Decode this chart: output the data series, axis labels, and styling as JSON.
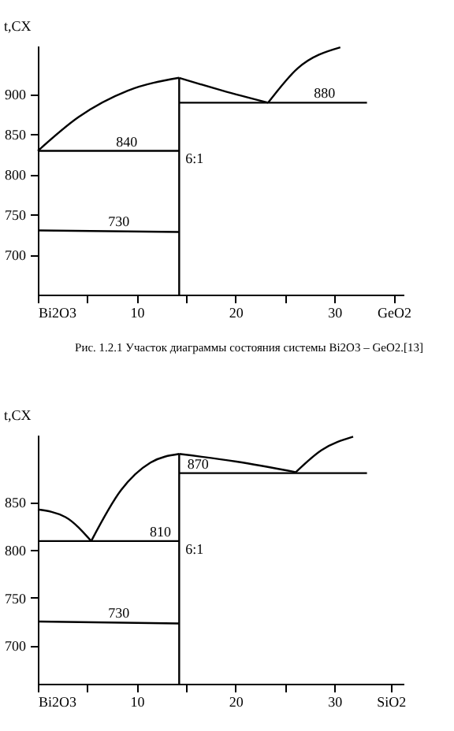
{
  "chart_data": [
    {
      "type": "line",
      "ylabel": "t,CX",
      "xlim": [
        0,
        37
      ],
      "ylim": [
        650,
        960
      ],
      "xticks": [
        {
          "value": 0,
          "label": "Bi2O3"
        },
        {
          "value": 5,
          "label": null
        },
        10,
        {
          "value": 15,
          "label": null
        },
        20,
        {
          "value": 25,
          "label": null
        },
        30,
        {
          "value": 36,
          "label": "GeO2"
        }
      ],
      "yticks": [
        700,
        750,
        800,
        850,
        900
      ],
      "grid": false,
      "series": [
        {
          "color": "#000000",
          "x": [
            0,
            4.1,
            9.1,
            14.3
          ],
          "values": [
            829,
            871,
            904,
            920
          ]
        },
        {
          "color": "#000000",
          "x": [
            14.3,
            18.7,
            23.3
          ],
          "values": [
            920,
            904,
            889
          ]
        },
        {
          "color": "#000000",
          "x": [
            23.3,
            26.3,
            30.6
          ],
          "values": [
            889,
            932,
            958
          ]
        },
        {
          "color": "#000000",
          "x": [
            14.3,
            14.3
          ],
          "values": [
            650,
            920
          ]
        },
        {
          "color": "#000000",
          "x": [
            14.3,
            33.3
          ],
          "values": [
            889,
            889
          ]
        },
        {
          "color": "#000000",
          "x": [
            0,
            14.3
          ],
          "values": [
            829,
            829
          ]
        },
        {
          "color": "#000000",
          "x": [
            0,
            14.3
          ],
          "values": [
            730,
            728
          ]
        }
      ],
      "annotations": [
        {
          "text": "840",
          "x": 9,
          "y": 829
        },
        {
          "text": "730",
          "x": 8.2,
          "y": 729
        },
        {
          "text": "880",
          "x": 29,
          "y": 889
        },
        {
          "text": "6:1",
          "x": 14.3,
          "y": 820
        },
        "Рис. 1.2.1  Участок диаграммы состояния системы Bi2O3 – GeO2.[13]"
      ]
    },
    {
      "type": "line",
      "ylabel": "t,CX",
      "xlim": [
        0,
        37
      ],
      "ylim": [
        660,
        920
      ],
      "xticks": [
        {
          "value": 0,
          "label": "Bi2O3"
        },
        {
          "value": 5,
          "label": null
        },
        10,
        {
          "value": 15,
          "label": null
        },
        20,
        {
          "value": 25,
          "label": null
        },
        30,
        {
          "value": 35.7,
          "label": "SiO2"
        }
      ],
      "yticks": [
        700,
        750,
        800,
        850
      ],
      "grid": false,
      "series": [
        {
          "color": "#000000",
          "x": [
            0,
            2.8,
            5.4
          ],
          "values": [
            842,
            834,
            809
          ]
        },
        {
          "color": "#000000",
          "x": [
            5.4,
            8.4,
            11.4,
            14.3
          ],
          "values": [
            809,
            862,
            891,
            900
          ]
        },
        {
          "color": "#000000",
          "x": [
            14.3,
            20.1,
            26.1
          ],
          "values": [
            900,
            892,
            881
          ]
        },
        {
          "color": "#000000",
          "x": [
            26.1,
            28.7,
            31.9
          ],
          "values": [
            881,
            904,
            918
          ]
        },
        {
          "color": "#000000",
          "x": [
            14.3,
            14.3
          ],
          "values": [
            660,
            900
          ]
        },
        {
          "color": "#000000",
          "x": [
            14.3,
            33.3
          ],
          "values": [
            880,
            880
          ]
        },
        {
          "color": "#000000",
          "x": [
            0,
            14.3
          ],
          "values": [
            809,
            809
          ]
        },
        {
          "color": "#000000",
          "x": [
            0,
            14.3
          ],
          "values": [
            725,
            723
          ]
        }
      ],
      "annotations": [
        {
          "text": "870",
          "x": 16.2,
          "y": 880
        },
        {
          "text": "810",
          "x": 12.4,
          "y": 809
        },
        {
          "text": "730",
          "x": 8.2,
          "y": 724
        },
        {
          "text": "6:1",
          "x": 14.3,
          "y": 801
        }
      ]
    }
  ]
}
